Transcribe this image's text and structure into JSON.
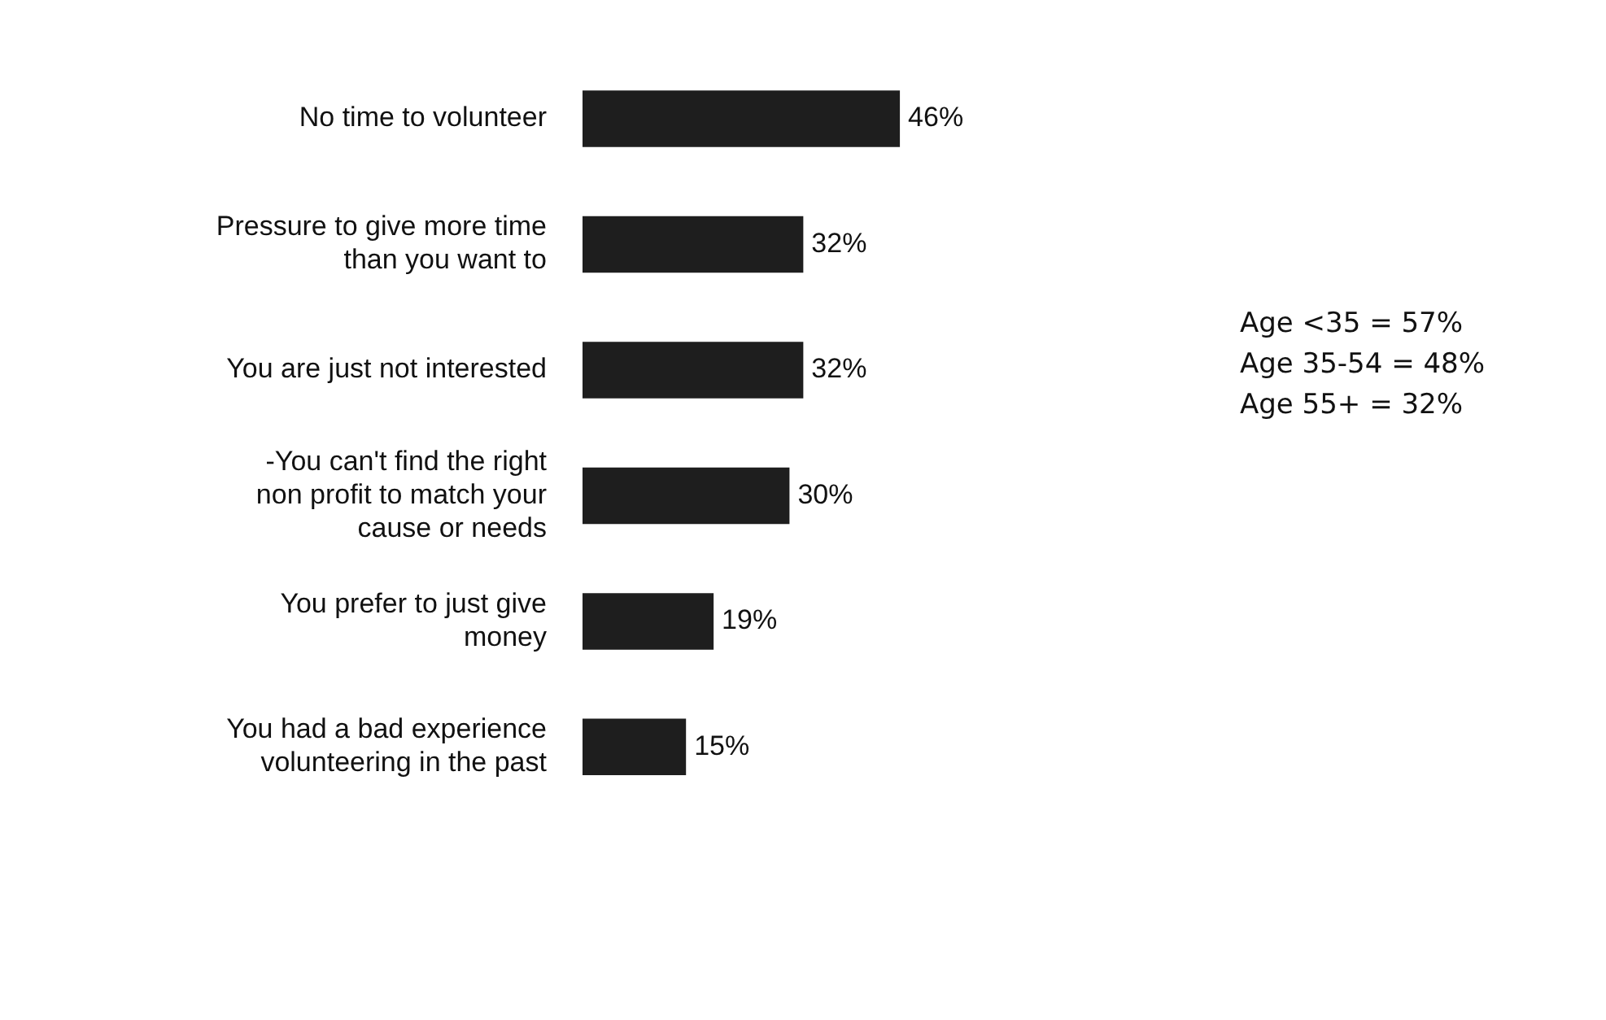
{
  "chart_data": {
    "type": "bar",
    "orientation": "horizontal",
    "categories": [
      "No time to volunteer",
      "Pressure to give more time than you want to",
      "You are just not interested",
      "-You can't find the right non profit to match your cause or needs",
      "You prefer to just give money",
      "You had a bad experience volunteering in the past"
    ],
    "values": [
      46,
      32,
      32,
      30,
      19,
      15
    ],
    "value_labels": [
      "46%",
      "32%",
      "32%",
      "30%",
      "19%",
      "15%"
    ],
    "color": "#1e1e1e",
    "legend": false,
    "grid": false,
    "annotations": [
      "Age <35 = 57%",
      "Age 35-54 = 48%",
      "Age 55+ = 32%"
    ]
  }
}
